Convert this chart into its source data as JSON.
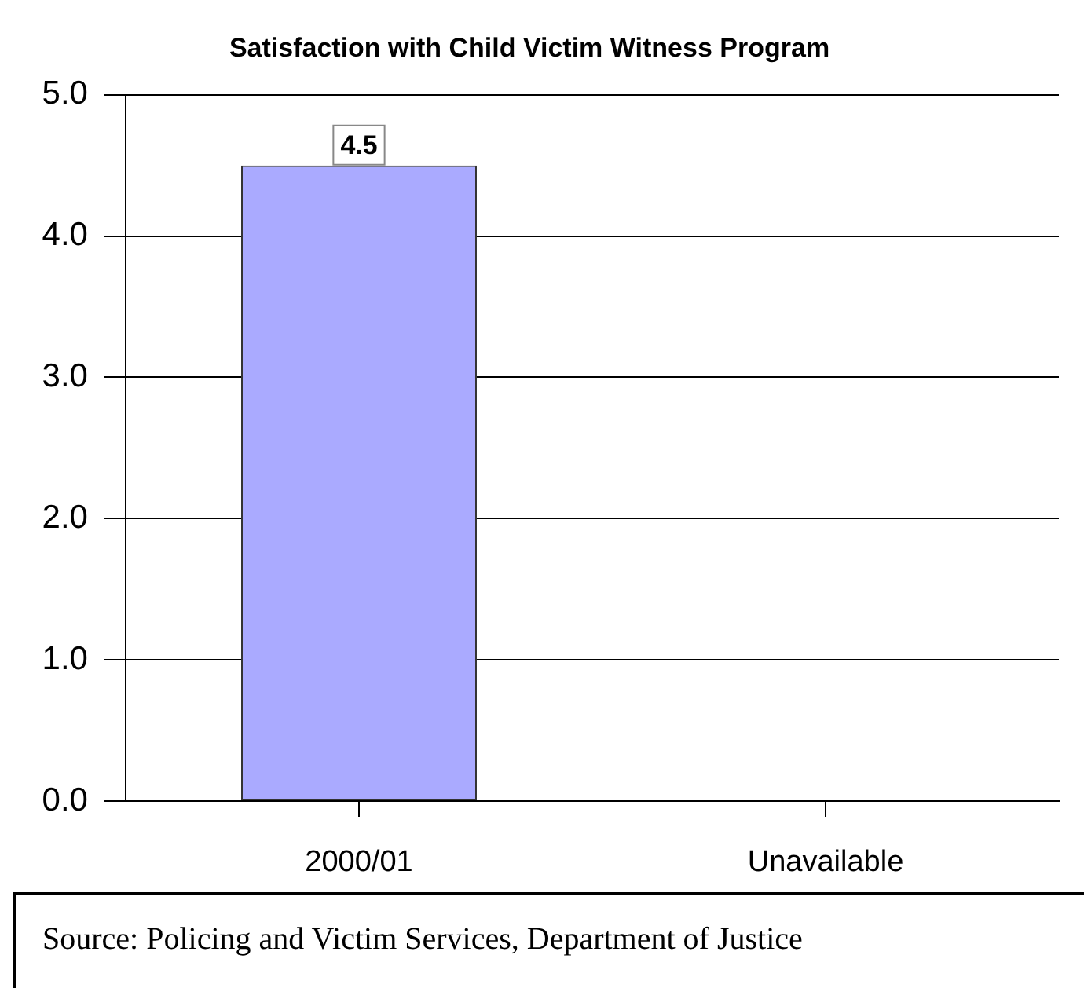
{
  "chart_data": {
    "type": "bar",
    "title": "Satisfaction with Child Victim Witness Program",
    "categories": [
      "2000/01",
      "Unavailable"
    ],
    "values": [
      4.5,
      null
    ],
    "color": "#aaaaff",
    "ylim": [
      0,
      5
    ],
    "yticks": [
      {
        "value": 0,
        "label": "0.0"
      },
      {
        "value": 1,
        "label": "1.0"
      },
      {
        "value": 2,
        "label": "2.0"
      },
      {
        "value": 3,
        "label": "3.0"
      },
      {
        "value": 4,
        "label": "4.0"
      },
      {
        "value": 5,
        "label": "5.0"
      }
    ],
    "grid": "y",
    "data_labels": true,
    "annotations": [
      "Source: Policing and Victim Services, Department of Justice"
    ]
  }
}
